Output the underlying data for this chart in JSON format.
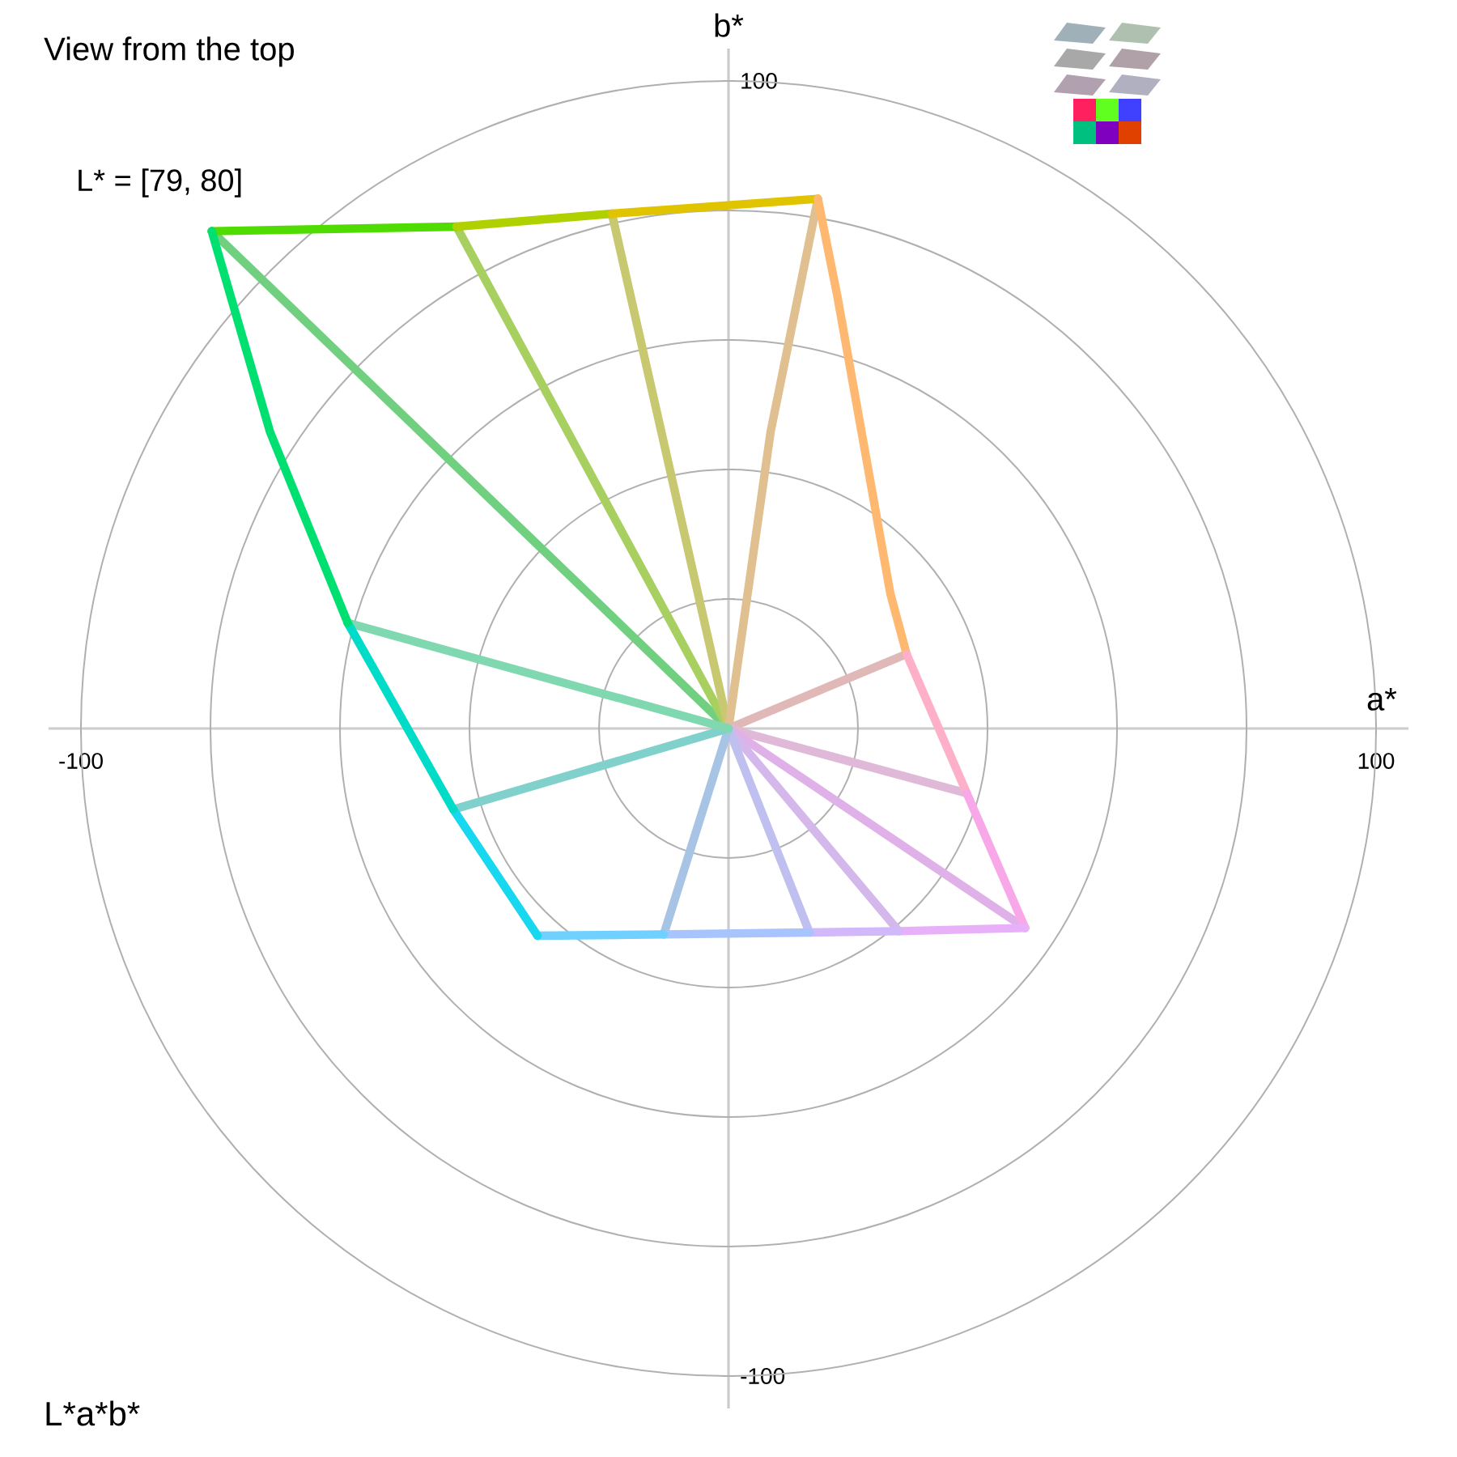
{
  "chart_data": {
    "type": "line",
    "title": "View from the top",
    "xlabel": "a*",
    "ylabel": "b*",
    "annotations": [
      "L* = [79, 80]",
      "L*a*b*"
    ],
    "xlim": [
      -105,
      105
    ],
    "ylim": [
      -105,
      105
    ],
    "xticks": [
      -100,
      100
    ],
    "yticks": [
      -100,
      {
        "value": 20,
        "label": null
      },
      {
        "value": 40,
        "label": null
      },
      {
        "value": 60,
        "label": null
      },
      {
        "value": 80,
        "label": null
      },
      100
    ],
    "series": [
      {
        "color": "#70d080",
        "x": [
          0,
          -79.8
        ],
        "values": [
          0,
          76.8
        ]
      },
      {
        "color": "#a8d060",
        "x": [
          0,
          -42
        ],
        "values": [
          0,
          77.5
        ]
      },
      {
        "color": "#c8c870",
        "x": [
          0,
          -18
        ],
        "values": [
          0,
          79.5
        ]
      },
      {
        "color": "#e0c090",
        "x": [
          0,
          6.5,
          13.8
        ],
        "values": [
          0,
          45.8,
          81.8
        ]
      },
      {
        "color": "#e0b8b8",
        "x": [
          0,
          27.5
        ],
        "values": [
          0,
          11.5
        ]
      },
      {
        "color": "#e0b8d8",
        "x": [
          0,
          36.8
        ],
        "values": [
          0,
          -10
        ]
      },
      {
        "color": "#e0b0e8",
        "x": [
          0,
          45.8
        ],
        "values": [
          0,
          -30.8
        ]
      },
      {
        "color": "#d4b8ec",
        "x": [
          0,
          26.3
        ],
        "values": [
          0,
          -31.3
        ]
      },
      {
        "color": "#c0c0f0",
        "x": [
          0,
          12.5
        ],
        "values": [
          0,
          -31.5
        ]
      },
      {
        "color": "#a8c4e4",
        "x": [
          0,
          -10
        ],
        "values": [
          0,
          -31.8
        ]
      },
      {
        "color": "#80d0cc",
        "x": [
          0,
          -42.5
        ],
        "values": [
          0,
          -12.5
        ]
      },
      {
        "color": "#80d8b0",
        "x": [
          0,
          -58.8
        ],
        "values": [
          0,
          16.3
        ]
      },
      {
        "color": "#50dc00",
        "x": [
          -79.8,
          -42
        ],
        "values": [
          76.8,
          77.5
        ]
      },
      {
        "color": "#b0d000",
        "x": [
          -42,
          -18
        ],
        "values": [
          77.5,
          79.5
        ]
      },
      {
        "color": "#e0c400",
        "x": [
          -18,
          13.8
        ],
        "values": [
          79.5,
          81.8
        ]
      },
      {
        "color": "#ffb870",
        "x": [
          13.8,
          16.8,
          25,
          27.5
        ],
        "values": [
          81.8,
          66.8,
          20.8,
          11.5
        ]
      },
      {
        "color": "#fdb0c8",
        "x": [
          27.5,
          36.8
        ],
        "values": [
          11.5,
          -10
        ]
      },
      {
        "color": "#f8a8e8",
        "x": [
          36.8,
          45.8
        ],
        "values": [
          -10,
          -30.8
        ]
      },
      {
        "color": "#e8b0f8",
        "x": [
          45.8,
          26.3
        ],
        "values": [
          -30.8,
          -31.3
        ]
      },
      {
        "color": "#d0b8fa",
        "x": [
          26.3,
          12.5
        ],
        "values": [
          -31.3,
          -31.5
        ]
      },
      {
        "color": "#a8c4fc",
        "x": [
          12.5,
          -10
        ],
        "values": [
          -31.5,
          -31.8
        ]
      },
      {
        "color": "#70d0ff",
        "x": [
          -10,
          -29.5
        ],
        "values": [
          -31.8,
          -32
        ]
      },
      {
        "color": "#18d8f0",
        "x": [
          -29.5,
          -42.5
        ],
        "values": [
          -32,
          -12.5
        ]
      },
      {
        "color": "#00dcc8",
        "x": [
          -42.5,
          -58.8
        ],
        "values": [
          -12.5,
          16.3
        ]
      },
      {
        "color": "#00e070",
        "x": [
          -58.8,
          -70.8,
          -79.8
        ],
        "values": [
          16.3,
          45.8,
          76.8
        ]
      }
    ]
  }
}
